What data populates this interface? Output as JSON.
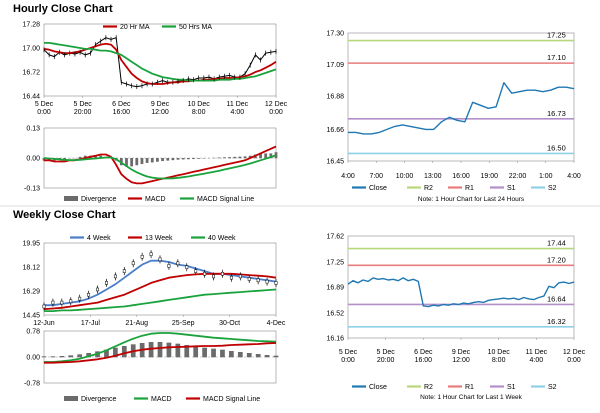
{
  "titles": {
    "hourly": "Hourly Close Chart",
    "weekly": "Weekly Close Chart"
  },
  "chart_data": [
    {
      "id": "hourly_price",
      "type": "line",
      "title": "Hourly Close Chart",
      "legend": [
        "20 Hr MA",
        "50 Hrs MA"
      ],
      "y_ticks": [
        "17.28",
        "17.00",
        "16.72",
        "16.44"
      ],
      "ylim": [
        16.44,
        17.28
      ],
      "x_ticks": [
        [
          "5 Dec",
          "0:00"
        ],
        [
          "5 Dec",
          "20:00"
        ],
        [
          "6 Dec",
          "16:00"
        ],
        [
          "9 Dec",
          "12:00"
        ],
        [
          "10 Dec",
          "8:00"
        ],
        [
          "11 Dec",
          "4:00"
        ],
        [
          "12 Dec",
          "0:00"
        ]
      ],
      "series": [
        {
          "name": "Close",
          "color": "#000000",
          "values": [
            16.98,
            16.92,
            16.9,
            16.95,
            16.92,
            16.94,
            16.93,
            16.95,
            16.92,
            16.94,
            17.04,
            17.08,
            17.12,
            17.1,
            17.12,
            16.6,
            16.58,
            16.56,
            16.55,
            16.56,
            16.58,
            16.58,
            16.6,
            16.62,
            16.6,
            16.6,
            16.61,
            16.62,
            16.64,
            16.63,
            16.65,
            16.65,
            16.66,
            16.64,
            16.66,
            16.67,
            16.68,
            16.66,
            16.66,
            16.7,
            16.8,
            16.92,
            16.86,
            16.94,
            16.95,
            16.96
          ]
        },
        {
          "name": "20 Hr MA",
          "color": "#c00000",
          "values": [
            16.99,
            16.98,
            16.96,
            16.95,
            16.94,
            16.94,
            16.95,
            16.96,
            16.98,
            17.0,
            17.02,
            17.04,
            17.05,
            17.04,
            16.98,
            16.86,
            16.78,
            16.7,
            16.65,
            16.61,
            16.59,
            16.58,
            16.58,
            16.58,
            16.59,
            16.6,
            16.6,
            16.61,
            16.61,
            16.62,
            16.62,
            16.63,
            16.63,
            16.64,
            16.64,
            16.65,
            16.65,
            16.65,
            16.66,
            16.67,
            16.69,
            16.72,
            16.74,
            16.77,
            16.8,
            16.84
          ]
        },
        {
          "name": "50 Hrs MA",
          "color": "#1aa33c",
          "values": [
            17.06,
            17.06,
            17.05,
            17.04,
            17.03,
            17.02,
            17.01,
            17.0,
            16.99,
            16.99,
            16.98,
            16.97,
            16.97,
            16.96,
            16.94,
            16.92,
            16.88,
            16.84,
            16.8,
            16.76,
            16.73,
            16.7,
            16.68,
            16.66,
            16.65,
            16.64,
            16.63,
            16.63,
            16.62,
            16.62,
            16.62,
            16.62,
            16.62,
            16.62,
            16.63,
            16.63,
            16.63,
            16.64,
            16.64,
            16.65,
            16.66,
            16.67,
            16.69,
            16.71,
            16.73,
            16.75
          ]
        }
      ]
    },
    {
      "id": "hourly_macd",
      "type": "bar",
      "legend": [
        "Divergence",
        "MACD",
        "MACD Signal Line"
      ],
      "y_ticks": [
        "0.13",
        "0.00",
        "-0.13"
      ],
      "ylim": [
        -0.13,
        0.13
      ],
      "divergence": [
        -0.01,
        -0.01,
        -0.01,
        -0.005,
        -0.005,
        0.0,
        0.0,
        0.005,
        0.01,
        0.01,
        0.01,
        0.01,
        0.005,
        0.0,
        -0.01,
        -0.03,
        -0.035,
        -0.035,
        -0.03,
        -0.025,
        -0.02,
        -0.018,
        -0.015,
        -0.012,
        -0.01,
        -0.008,
        -0.006,
        -0.005,
        -0.004,
        -0.003,
        -0.002,
        -0.001,
        0.0,
        0.001,
        0.002,
        0.003,
        0.004,
        0.005,
        0.006,
        0.007,
        0.01,
        0.015,
        0.02,
        0.02,
        0.02,
        0.025
      ],
      "series": [
        {
          "name": "MACD",
          "color": "#c00000",
          "values": [
            -0.01,
            -0.01,
            -0.015,
            -0.015,
            -0.015,
            -0.01,
            -0.01,
            -0.005,
            0.0,
            0.005,
            0.01,
            0.015,
            0.015,
            0.005,
            -0.03,
            -0.07,
            -0.09,
            -0.105,
            -0.11,
            -0.11,
            -0.105,
            -0.1,
            -0.095,
            -0.09,
            -0.085,
            -0.08,
            -0.075,
            -0.07,
            -0.065,
            -0.06,
            -0.055,
            -0.05,
            -0.045,
            -0.04,
            -0.035,
            -0.03,
            -0.025,
            -0.02,
            -0.015,
            -0.01,
            0.0,
            0.01,
            0.02,
            0.03,
            0.04,
            0.05
          ]
        },
        {
          "name": "MACD Signal Line",
          "color": "#1aa33c",
          "values": [
            0.0,
            -0.002,
            -0.004,
            -0.006,
            -0.008,
            -0.009,
            -0.009,
            -0.008,
            -0.006,
            -0.004,
            -0.002,
            0.0,
            0.002,
            0.002,
            -0.005,
            -0.02,
            -0.035,
            -0.05,
            -0.062,
            -0.072,
            -0.08,
            -0.085,
            -0.088,
            -0.089,
            -0.089,
            -0.088,
            -0.086,
            -0.083,
            -0.08,
            -0.076,
            -0.072,
            -0.068,
            -0.064,
            -0.06,
            -0.055,
            -0.05,
            -0.045,
            -0.04,
            -0.035,
            -0.03,
            -0.024,
            -0.017,
            -0.01,
            -0.003,
            0.004,
            0.012
          ]
        }
      ]
    },
    {
      "id": "hourly_pivot",
      "type": "line",
      "y_ticks": [
        "17.30",
        "17.09",
        "16.88",
        "16.66",
        "16.45"
      ],
      "ylim": [
        16.45,
        17.3
      ],
      "x_ticks": [
        "4:00",
        "7:00",
        "10:00",
        "13:00",
        "16:00",
        "19:00",
        "22:00",
        "1:00",
        "4:00"
      ],
      "levels": [
        {
          "name": "R2",
          "value": 17.25,
          "label": "17.25",
          "color": "#b6d77a"
        },
        {
          "name": "R1",
          "value": 17.1,
          "label": "17.10",
          "color": "#e87c7c"
        },
        {
          "name": "S1",
          "value": 16.73,
          "label": "16.73",
          "color": "#b48fc9"
        },
        {
          "name": "S2",
          "value": 16.5,
          "label": "16.50",
          "color": "#8ed0e6"
        }
      ],
      "series": [
        {
          "name": "Close",
          "color": "#1f77b4",
          "values": [
            16.64,
            16.64,
            16.63,
            16.63,
            16.64,
            16.66,
            16.68,
            16.69,
            16.68,
            16.67,
            16.66,
            16.66,
            16.71,
            16.74,
            16.72,
            16.71,
            16.84,
            16.82,
            16.8,
            16.81,
            16.97,
            16.9,
            16.91,
            16.92,
            16.92,
            16.91,
            16.92,
            16.94,
            16.94,
            16.93
          ]
        }
      ],
      "legend": [
        "Close",
        "R2",
        "R1",
        "S1",
        "S2"
      ],
      "note": "Note: 1 Hour Chart for Last 24 Hours"
    },
    {
      "id": "weekly_price",
      "type": "line",
      "title": "Weekly Close Chart",
      "legend": [
        "4 Week",
        "13 Week",
        "40 Week"
      ],
      "y_ticks": [
        "19.95",
        "18.12",
        "16.29",
        "14.45"
      ],
      "ylim": [
        14.45,
        19.95
      ],
      "x_ticks": [
        "12-Jun",
        "17-Jul",
        "21-Aug",
        "25-Sep",
        "30-Oct",
        "4-Dec"
      ],
      "close": [
        15.1,
        15.4,
        15.4,
        15.5,
        15.7,
        16.0,
        16.4,
        16.9,
        17.4,
        17.8,
        18.4,
        18.9,
        19.1,
        18.7,
        18.2,
        18.4,
        18.1,
        17.8,
        17.6,
        17.4,
        17.6,
        17.3,
        17.4,
        17.2,
        17.1,
        17.0,
        16.9
      ],
      "series": [
        {
          "name": "4 Week",
          "color": "#4a7ec9",
          "values": [
            15.2,
            15.2,
            15.3,
            15.4,
            15.5,
            15.7,
            16.0,
            16.4,
            16.8,
            17.3,
            17.8,
            18.3,
            18.6,
            18.6,
            18.5,
            18.3,
            18.2,
            18.0,
            17.8,
            17.6,
            17.6,
            17.5,
            17.4,
            17.3,
            17.2,
            17.1,
            17.0
          ]
        },
        {
          "name": "13 Week",
          "color": "#c00000",
          "values": [
            14.9,
            14.95,
            15.0,
            15.1,
            15.2,
            15.3,
            15.4,
            15.6,
            15.8,
            16.0,
            16.3,
            16.6,
            16.9,
            17.1,
            17.3,
            17.4,
            17.5,
            17.55,
            17.6,
            17.6,
            17.6,
            17.6,
            17.55,
            17.5,
            17.45,
            17.4,
            17.3
          ]
        },
        {
          "name": "40 Week",
          "color": "#1aa33c",
          "values": [
            14.75,
            14.75,
            14.8,
            14.8,
            14.85,
            14.9,
            14.95,
            15.0,
            15.05,
            15.1,
            15.2,
            15.3,
            15.4,
            15.5,
            15.6,
            15.7,
            15.8,
            15.9,
            16.0,
            16.05,
            16.1,
            16.15,
            16.2,
            16.25,
            16.3,
            16.35,
            16.4
          ]
        }
      ]
    },
    {
      "id": "weekly_macd",
      "type": "bar",
      "legend": [
        "Divergence",
        "MACD",
        "MACD Signal Line"
      ],
      "y_ticks": [
        "0.78",
        "0.00",
        "-0.78"
      ],
      "ylim": [
        -0.78,
        0.78
      ],
      "divergence": [
        0.02,
        0.02,
        0.03,
        0.05,
        0.08,
        0.12,
        0.17,
        0.22,
        0.28,
        0.33,
        0.38,
        0.42,
        0.45,
        0.45,
        0.43,
        0.4,
        0.36,
        0.32,
        0.28,
        0.25,
        0.22,
        0.18,
        0.15,
        0.12,
        0.09,
        0.06,
        0.04
      ],
      "series": [
        {
          "name": "MACD",
          "color": "#1aa33c",
          "values": [
            -0.15,
            -0.15,
            -0.13,
            -0.1,
            -0.05,
            0.02,
            0.1,
            0.2,
            0.32,
            0.44,
            0.55,
            0.64,
            0.7,
            0.72,
            0.72,
            0.7,
            0.67,
            0.64,
            0.61,
            0.58,
            0.56,
            0.54,
            0.52,
            0.5,
            0.48,
            0.47,
            0.46
          ]
        },
        {
          "name": "MACD Signal Line",
          "color": "#c00000",
          "values": [
            -0.17,
            -0.17,
            -0.16,
            -0.15,
            -0.13,
            -0.1,
            -0.07,
            -0.02,
            0.04,
            0.11,
            0.17,
            0.22,
            0.25,
            0.27,
            0.29,
            0.3,
            0.31,
            0.32,
            0.33,
            0.33,
            0.34,
            0.36,
            0.37,
            0.38,
            0.39,
            0.41,
            0.42
          ]
        }
      ]
    },
    {
      "id": "weekly_pivot",
      "type": "line",
      "y_ticks": [
        "17.62",
        "17.25",
        "16.89",
        "16.52",
        "16.16"
      ],
      "ylim": [
        16.16,
        17.62
      ],
      "x_ticks": [
        [
          "5 Dec",
          "0:00"
        ],
        [
          "5 Dec",
          "20:00"
        ],
        [
          "6 Dec",
          "16:00"
        ],
        [
          "9 Dec",
          "12:00"
        ],
        [
          "10 Dec",
          "8:00"
        ],
        [
          "11 Dec",
          "4:00"
        ],
        [
          "12 Dec",
          "0:00"
        ]
      ],
      "levels": [
        {
          "name": "R2",
          "value": 17.44,
          "label": "17.44",
          "color": "#b6d77a"
        },
        {
          "name": "R1",
          "value": 17.2,
          "label": "17.20",
          "color": "#e87c7c"
        },
        {
          "name": "S1",
          "value": 16.64,
          "label": "16.64",
          "color": "#b48fc9"
        },
        {
          "name": "S2",
          "value": 16.32,
          "label": "16.32",
          "color": "#8ed0e6"
        }
      ],
      "series": [
        {
          "name": "Close",
          "color": "#1f77b4",
          "values": [
            16.93,
            16.98,
            16.95,
            16.99,
            16.97,
            17.02,
            17.0,
            17.01,
            16.99,
            17.0,
            16.98,
            17.02,
            16.98,
            17.0,
            16.97,
            16.62,
            16.61,
            16.63,
            16.62,
            16.64,
            16.63,
            16.65,
            16.64,
            16.66,
            16.65,
            16.67,
            16.68,
            16.67,
            16.7,
            16.71,
            16.72,
            16.73,
            16.72,
            16.73,
            16.71,
            16.74,
            16.72,
            16.71,
            16.74,
            16.76,
            16.9,
            16.88,
            16.95,
            16.96,
            16.94,
            16.96
          ]
        }
      ],
      "legend": [
        "Close",
        "R2",
        "R1",
        "S1",
        "S2"
      ],
      "note": "Note: 1 Hour Chart for Last 1 Week"
    }
  ]
}
